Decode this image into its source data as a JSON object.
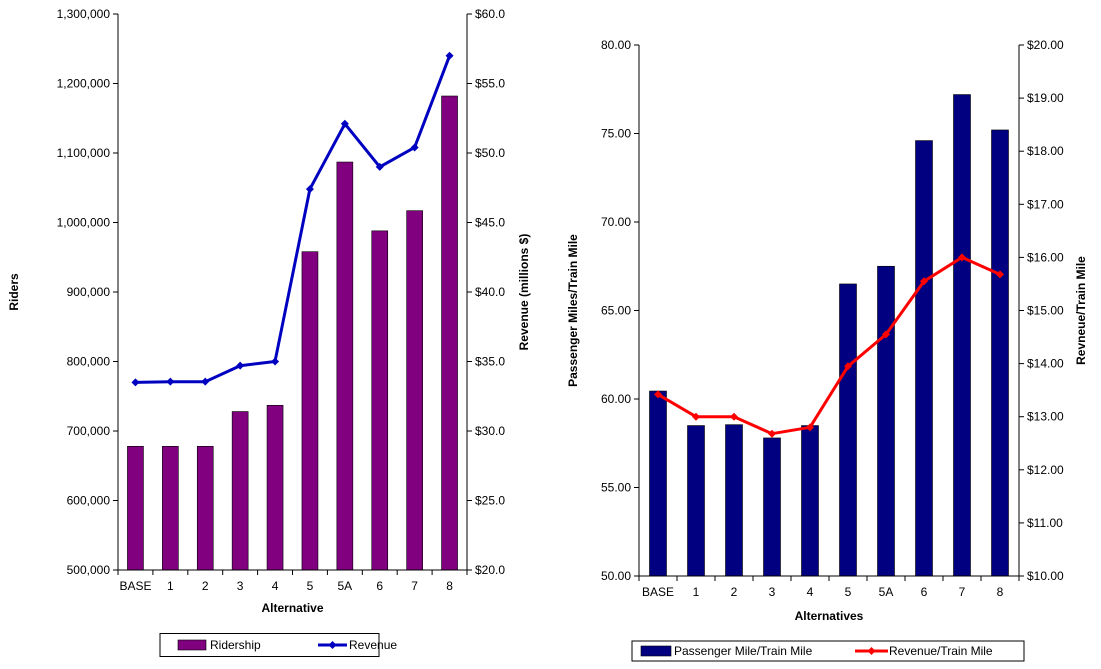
{
  "chart_data": [
    {
      "type": "bar+line",
      "categories": [
        "BASE",
        "1",
        "2",
        "3",
        "4",
        "5",
        "5A",
        "6",
        "7",
        "8"
      ],
      "series": [
        {
          "name": "Ridership",
          "type": "bar",
          "axis": "left",
          "color": "#800080",
          "values": [
            678000,
            678000,
            678000,
            728000,
            737000,
            958000,
            1087000,
            988000,
            1017000,
            1182000
          ]
        },
        {
          "name": "Revenue",
          "type": "line",
          "axis": "right",
          "color": "#0000c0",
          "values": [
            33.5,
            33.55,
            33.55,
            34.7,
            35.0,
            47.4,
            52.1,
            49.0,
            50.4,
            57.0
          ]
        }
      ],
      "xlabel": "Alternative",
      "ylabel": "Riders",
      "y2label": "Revenue (millions $)",
      "ylim": [
        500000,
        1300000
      ],
      "y2lim": [
        20,
        60
      ],
      "yticks": [
        "500,000",
        "600,000",
        "700,000",
        "800,000",
        "900,000",
        "1,000,000",
        "1,100,000",
        "1,200,000",
        "1,300,000"
      ],
      "y2ticks": [
        "$20.0",
        "$25.0",
        "$30.0",
        "$35.0",
        "$40.0",
        "$45.0",
        "$50.0",
        "$55.0",
        "$60.0"
      ],
      "legend": [
        "Ridership",
        "Revenue"
      ],
      "legend_position": "bottom",
      "grid": false
    },
    {
      "type": "bar+line",
      "categories": [
        "BASE",
        "1",
        "2",
        "3",
        "4",
        "5",
        "5A",
        "6",
        "7",
        "8"
      ],
      "series": [
        {
          "name": "Passenger Mile/Train Mile",
          "type": "bar",
          "axis": "left",
          "color": "#000080",
          "values": [
            60.45,
            58.5,
            58.55,
            57.8,
            58.5,
            66.5,
            67.5,
            74.6,
            77.2,
            75.2
          ]
        },
        {
          "name": "Revenue/Train Mile",
          "type": "line",
          "axis": "right",
          "color": "#ff0000",
          "values": [
            13.42,
            13.0,
            13.0,
            12.68,
            12.8,
            13.95,
            14.55,
            15.55,
            16.0,
            15.68
          ]
        }
      ],
      "xlabel": "Alternatives",
      "ylabel": "Passenger Miles/Train Mile",
      "y2label": "Revneue/Train Mile",
      "ylim": [
        50,
        80
      ],
      "y2lim": [
        10,
        20
      ],
      "yticks": [
        "50.00",
        "55.00",
        "60.00",
        "65.00",
        "70.00",
        "75.00",
        "80.00"
      ],
      "y2ticks": [
        "$10.00",
        "$11.00",
        "$12.00",
        "$13.00",
        "$14.00",
        "$15.00",
        "$16.00",
        "$17.00",
        "$18.00",
        "$19.00",
        "$20.00"
      ],
      "legend": [
        "Passenger Mile/Train Mile",
        "Revenue/Train Mile"
      ],
      "legend_position": "bottom",
      "grid": false
    }
  ]
}
